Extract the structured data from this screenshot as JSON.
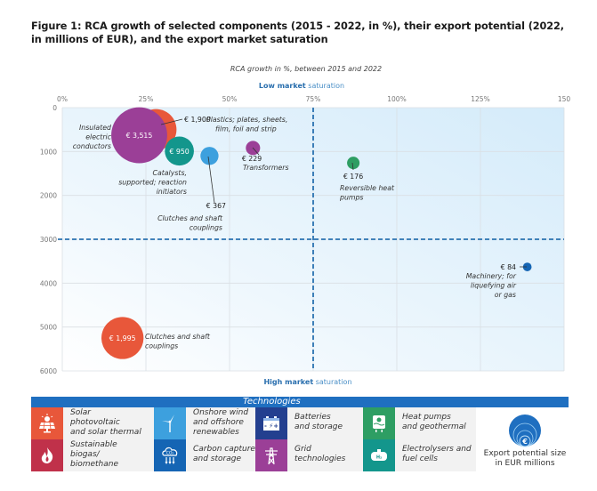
{
  "figure_title": "Figure 1: RCA growth of selected components (2015 - 2022, in %), their export potential (2022, in millions of EUR), and the export market saturation",
  "chart_data": {
    "type": "scatter",
    "subtype": "bubble",
    "title": "RCA growth in %, between 2015 and 2022",
    "xlabel": "RCA growth in %, between 2015 and 2022",
    "ylabel": "",
    "top_annotation": {
      "bold": "Low market",
      "rest": " saturation"
    },
    "bottom_annotation": {
      "bold": "High market",
      "rest": " saturation"
    },
    "xlim": [
      0,
      150
    ],
    "ylim": [
      0,
      6000
    ],
    "y_inverted": true,
    "x_ticks": [
      "0%",
      "25%",
      "50%",
      "75%",
      "100%",
      "125%",
      "150"
    ],
    "x_tick_values": [
      0,
      25,
      50,
      75,
      100,
      125,
      150
    ],
    "y_ticks": [
      "0",
      "1000",
      "2000",
      "3000",
      "4000",
      "5000",
      "6000"
    ],
    "y_tick_values": [
      0,
      1000,
      2000,
      3000,
      4000,
      5000,
      6000
    ],
    "grid": true,
    "reference_lines": {
      "x": 75,
      "y": 3000
    },
    "size_unit": "EUR millions",
    "points": [
      {
        "name": "Plastics; plates, sheets, film, foil and strip",
        "label_lines": [
          "Plastics; plates, sheets,",
          "film, foil and strip"
        ],
        "x": 28,
        "y": 500,
        "size": 1900,
        "value_label": "€ 1,900",
        "category": "Solar photovoltaic and solar thermal",
        "color": "#e8573a"
      },
      {
        "name": "Insulated electric conductors",
        "label_lines": [
          "Insulated",
          "electric",
          "conductors"
        ],
        "x": 23,
        "y": 630,
        "size": 3515,
        "value_label": "€ 3,515",
        "category": "Grid technologies",
        "color": "#9b3f97"
      },
      {
        "name": "Catalysts, supported; reaction initiators",
        "label_lines": [
          "Catalysts,",
          "supported; reaction",
          "initiators"
        ],
        "x": 35,
        "y": 990,
        "size": 950,
        "value_label": "€ 950",
        "category": "Electrolysers and fuel cells",
        "color": "#13968c"
      },
      {
        "name": "Clutches and shaft couplings",
        "label_lines": [
          "Clutches and shaft",
          "couplings"
        ],
        "x": 44,
        "y": 1100,
        "size": 367,
        "value_label": "€ 367",
        "category": "Onshore wind and offshore renewables",
        "color": "#3da0de"
      },
      {
        "name": "Transformers",
        "label_lines": [
          "Transformers"
        ],
        "x": 57,
        "y": 920,
        "size": 229,
        "value_label": "€ 229",
        "category": "Grid technologies",
        "color": "#9b3f97"
      },
      {
        "name": "Reversible heat pumps",
        "label_lines": [
          "Reversible heat",
          "pumps"
        ],
        "x": 87,
        "y": 1260,
        "size": 176,
        "value_label": "€ 176",
        "category": "Heat pumps and geothermal",
        "color": "#2e9e63"
      },
      {
        "name": "Machinery; for liquefying air or gas",
        "label_lines": [
          "Machinery; for",
          "liquefying air",
          "or gas"
        ],
        "x": 139,
        "y": 3630,
        "size": 84,
        "value_label": "€ 84",
        "category": "Carbon capture and storage",
        "color": "#1565b4"
      },
      {
        "name": "Clutches and shaft couplings",
        "label_lines": [
          "Clutches and shaft",
          "couplings"
        ],
        "x": 18,
        "y": 5250,
        "size": 1995,
        "value_label": "€ 1,995",
        "category": "Solar photovoltaic and solar thermal",
        "color": "#e8573a"
      }
    ],
    "legend": {
      "title": "Technologies",
      "entries": [
        {
          "label": "Solar photovoltaic and solar thermal",
          "lines": [
            "Solar",
            "photovoltaic",
            "and solar thermal"
          ],
          "icon": "solar-panel-icon",
          "color": "#e8573a"
        },
        {
          "label": "Sustainable biogas/ biomethane",
          "lines": [
            "Sustainable",
            "biogas/",
            "biomethane"
          ],
          "icon": "flame-icon",
          "color": "#c0314a"
        },
        {
          "label": "Onshore wind and offshore renewables",
          "lines": [
            "Onshore wind",
            "and offshore",
            "renewables"
          ],
          "icon": "wind-turbine-icon",
          "color": "#3da0de"
        },
        {
          "label": "Carbon capture and storage",
          "lines": [
            "Carbon capture",
            "and storage"
          ],
          "icon": "co2-cloud-icon",
          "color": "#1565b4"
        },
        {
          "label": "Batteries and storage",
          "lines": [
            "Batteries",
            "and storage"
          ],
          "icon": "battery-icon",
          "color": "#233f8f"
        },
        {
          "label": "Grid technologies",
          "lines": [
            "Grid",
            "technologies"
          ],
          "icon": "pylon-icon",
          "color": "#9b3f97"
        },
        {
          "label": "Heat pumps and geothermal",
          "lines": [
            "Heat pumps",
            "and geothermal"
          ],
          "icon": "heat-pump-icon",
          "color": "#2e9e63"
        },
        {
          "label": "Electrolysers and fuel cells",
          "lines": [
            "Electrolysers and",
            "fuel cells"
          ],
          "icon": "h2-tank-icon",
          "color": "#13968c"
        }
      ],
      "size_legend_label": [
        "Export potential size",
        "in EUR millions"
      ],
      "size_legend_icon": "euro-icon",
      "size_legend_symbol": "€"
    }
  }
}
